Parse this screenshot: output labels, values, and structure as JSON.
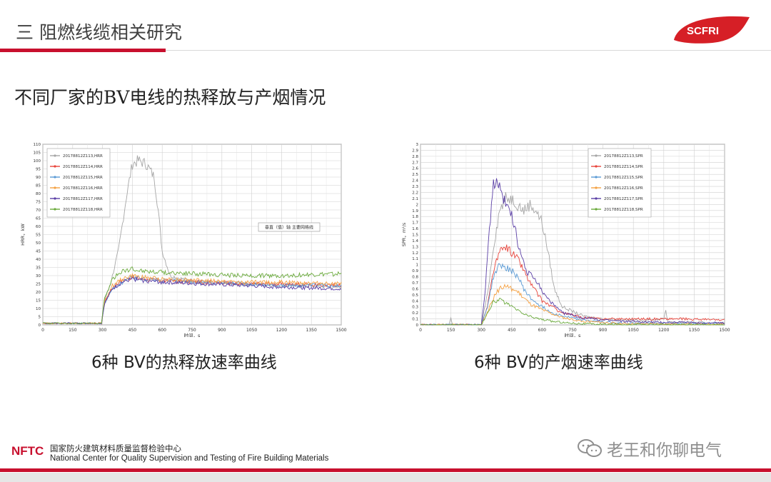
{
  "header": {
    "title": "三 阻燃线缆相关研究",
    "logo_text": "SCFRI"
  },
  "slide": {
    "subtitle": "不同厂家的BV电线的热释放与产烟情况"
  },
  "captions": {
    "hrr": "6种 BV的热释放速率曲线",
    "spr": "6种 BV的产烟速率曲线"
  },
  "footer": {
    "logo": "NFTC",
    "org_cn": "国家防火建筑材料质量监督检验中心",
    "org_en": "National Center for Quality Supervision and Testing of Fire Building Materials",
    "watermark": "老王和你聊电气"
  },
  "colors": {
    "brand_red": "#c8102e",
    "series": [
      "#a6a6a6",
      "#e8453c",
      "#5b9bd5",
      "#f4a143",
      "#5b3fa6",
      "#6aaa3c"
    ]
  },
  "chart_data": [
    {
      "type": "line",
      "xlabel": "时间，s",
      "ylabel": "HRR，kW",
      "xlim": [
        0,
        1500
      ],
      "ylim": [
        0,
        110
      ],
      "xticks": [
        0,
        150,
        300,
        450,
        600,
        750,
        900,
        1050,
        1200,
        1350,
        1500
      ],
      "yticks": [
        0,
        5,
        10,
        15,
        20,
        25,
        30,
        35,
        40,
        45,
        50,
        55,
        60,
        65,
        70,
        75,
        80,
        85,
        90,
        95,
        100,
        105,
        110
      ],
      "ytick_labels": [
        "0",
        "5",
        "10",
        "15",
        "20",
        "25",
        "30",
        "35",
        "40",
        "45",
        "50",
        "55",
        "60",
        "65",
        "70",
        "75",
        "80",
        "85",
        "90",
        "95",
        "100",
        "105",
        "110"
      ],
      "grid": true,
      "legend": "top-left",
      "annotation": "垂直（值）轴 主要网格线",
      "series": [
        {
          "name": "20178812Z113,HRR",
          "x": [
            0,
            295,
            310,
            340,
            380,
            420,
            450,
            480,
            520,
            560,
            580,
            600,
            640,
            700,
            800,
            1000,
            1200,
            1500
          ],
          "y": [
            1,
            1,
            15,
            25,
            45,
            78,
            98,
            100,
            98,
            90,
            70,
            45,
            30,
            28,
            26,
            25,
            24,
            23
          ]
        },
        {
          "name": "20178812Z114,HRR",
          "x": [
            0,
            295,
            310,
            350,
            400,
            450,
            500,
            600,
            800,
            1000,
            1200,
            1500
          ],
          "y": [
            1,
            1,
            14,
            23,
            27,
            29,
            28,
            27,
            26,
            25,
            25,
            24
          ]
        },
        {
          "name": "20178812Z115,HRR",
          "x": [
            0,
            295,
            310,
            350,
            400,
            450,
            500,
            600,
            800,
            1000,
            1200,
            1500
          ],
          "y": [
            1,
            1,
            13,
            22,
            26,
            29,
            28,
            27,
            26,
            25,
            24,
            24
          ]
        },
        {
          "name": "20178812Z116,HRR",
          "x": [
            0,
            295,
            310,
            350,
            400,
            450,
            500,
            600,
            800,
            1000,
            1200,
            1500
          ],
          "y": [
            1,
            1,
            14,
            24,
            28,
            30,
            29,
            28,
            27,
            26,
            26,
            25
          ]
        },
        {
          "name": "20178812Z117,HRR",
          "x": [
            0,
            295,
            310,
            350,
            400,
            450,
            500,
            600,
            800,
            1000,
            1200,
            1500
          ],
          "y": [
            1,
            1,
            13,
            22,
            26,
            28,
            27,
            26,
            25,
            24,
            23,
            22
          ]
        },
        {
          "name": "20178812Z118,HRR",
          "x": [
            0,
            295,
            310,
            350,
            400,
            450,
            500,
            600,
            800,
            1000,
            1200,
            1500
          ],
          "y": [
            1,
            1,
            16,
            28,
            33,
            34,
            33,
            32,
            31,
            30,
            30,
            31
          ]
        }
      ]
    },
    {
      "type": "line",
      "xlabel": "时间，s",
      "ylabel": "SPR，m²/s",
      "xlim": [
        0,
        1500
      ],
      "ylim": [
        0,
        3
      ],
      "xticks": [
        0,
        150,
        300,
        450,
        600,
        750,
        900,
        1050,
        1200,
        1350,
        1500
      ],
      "yticks": [
        0,
        0.1,
        0.2,
        0.3,
        0.4,
        0.5,
        0.6,
        0.7,
        0.8,
        0.9,
        1,
        1.1,
        1.2,
        1.3,
        1.4,
        1.5,
        1.6,
        1.7,
        1.8,
        1.9,
        2,
        2.1,
        2.2,
        2.3,
        2.4,
        2.5,
        2.6,
        2.7,
        2.8,
        2.9,
        3
      ],
      "ytick_labels": [
        "0",
        "0.1",
        "0.2",
        "0.3",
        "0.4",
        "0.5",
        "0.6",
        "0.7",
        "0.8",
        "0.9",
        "1",
        "1.1",
        "1.2",
        "1.3",
        "1.4",
        "1.5",
        "1.6",
        "1.7",
        "1.8",
        "1.9",
        "2",
        "2.1",
        "2.2",
        "2.3",
        "2.4",
        "2.5",
        "2.6",
        "2.7",
        "2.8",
        "2.9",
        "3"
      ],
      "grid": true,
      "legend": "top-right",
      "series": [
        {
          "name": "20178812Z113,SPR",
          "x": [
            0,
            140,
            150,
            160,
            300,
            330,
            360,
            390,
            420,
            450,
            480,
            510,
            540,
            570,
            600,
            630,
            660,
            700,
            800,
            900,
            1000,
            1100,
            1200,
            1210,
            1220,
            1500
          ],
          "y": [
            0,
            0,
            0.1,
            0,
            0,
            0.5,
            1.3,
            1.9,
            2.1,
            2.1,
            2.0,
            1.9,
            2.0,
            1.9,
            1.7,
            1.2,
            0.6,
            0.3,
            0.15,
            0.1,
            0.08,
            0.07,
            0.1,
            0.25,
            0.05,
            0.03
          ]
        },
        {
          "name": "20178812Z114,SPR",
          "x": [
            0,
            300,
            330,
            360,
            390,
            420,
            450,
            480,
            510,
            540,
            570,
            600,
            650,
            700,
            800,
            900,
            1000,
            1100,
            1200,
            1300,
            1500
          ],
          "y": [
            0,
            0,
            0.3,
            0.9,
            1.2,
            1.3,
            1.2,
            1.1,
            0.9,
            0.7,
            0.55,
            0.4,
            0.3,
            0.2,
            0.12,
            0.1,
            0.1,
            0.1,
            0.1,
            0.1,
            0.08
          ]
        },
        {
          "name": "20178812Z115,SPR",
          "x": [
            0,
            300,
            330,
            360,
            390,
            420,
            450,
            480,
            510,
            540,
            600,
            650,
            700,
            800,
            900,
            1000,
            1500
          ],
          "y": [
            0,
            0,
            0.3,
            0.8,
            1.0,
            0.95,
            0.9,
            0.8,
            0.6,
            0.45,
            0.3,
            0.2,
            0.15,
            0.08,
            0.05,
            0.03,
            0.02
          ]
        },
        {
          "name": "20178812Z116,SPR",
          "x": [
            0,
            300,
            330,
            360,
            390,
            420,
            450,
            480,
            510,
            540,
            600,
            650,
            700,
            800,
            900,
            1000,
            1500
          ],
          "y": [
            0,
            0,
            0.2,
            0.45,
            0.6,
            0.65,
            0.6,
            0.55,
            0.45,
            0.35,
            0.25,
            0.18,
            0.12,
            0.06,
            0.04,
            0.02,
            0.01
          ]
        },
        {
          "name": "20178812Z117,SPR",
          "x": [
            0,
            300,
            320,
            340,
            360,
            380,
            400,
            420,
            440,
            460,
            490,
            520,
            550,
            580,
            600,
            650,
            700,
            800,
            900,
            1000,
            1100,
            1500
          ],
          "y": [
            0,
            0,
            0.6,
            1.6,
            2.3,
            2.4,
            2.2,
            2.0,
            1.9,
            1.7,
            1.2,
            0.9,
            0.8,
            0.7,
            0.55,
            0.35,
            0.2,
            0.12,
            0.08,
            0.06,
            0.05,
            0.03
          ]
        },
        {
          "name": "20178812Z118,SPR",
          "x": [
            0,
            300,
            330,
            360,
            390,
            420,
            450,
            480,
            510,
            540,
            600,
            650,
            700,
            800,
            900,
            1500
          ],
          "y": [
            0,
            0,
            0.2,
            0.38,
            0.42,
            0.36,
            0.3,
            0.24,
            0.18,
            0.14,
            0.09,
            0.06,
            0.04,
            0.02,
            0.01,
            0
          ]
        }
      ]
    }
  ]
}
